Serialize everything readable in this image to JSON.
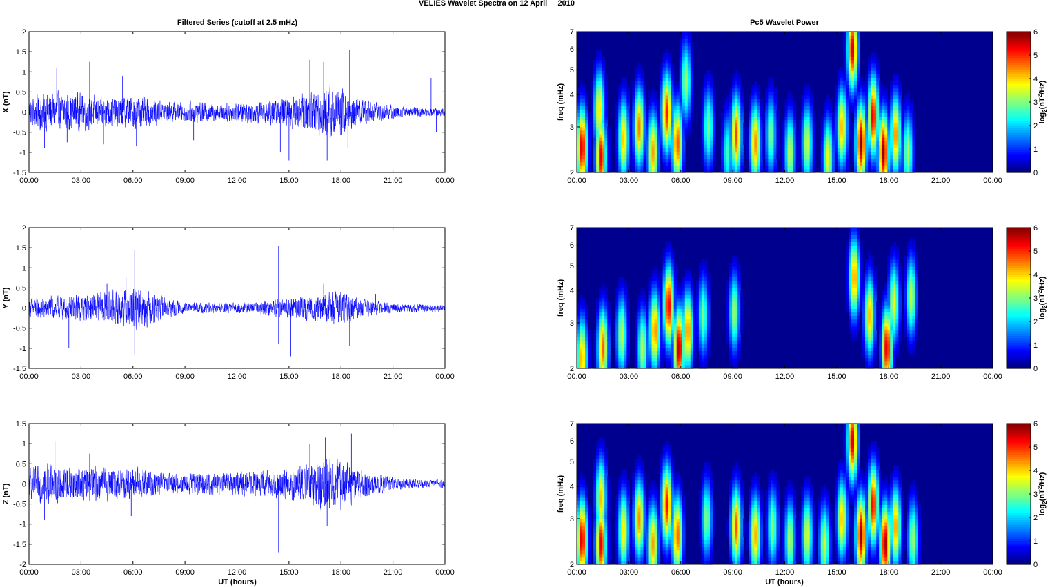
{
  "figure": {
    "title": "VELIES Wavelet Spectra on 12 April     2010",
    "left_title": "Filtered Series (cutoff at 2.5 mHz)",
    "right_title": "Pc5 Wavelet Power",
    "xlabel": "UT (hours)"
  },
  "colors": {
    "series_line": "#0000ff",
    "spectrogram_background": "#00008f"
  },
  "chart_data": [
    {
      "type": "line",
      "component": "X",
      "ylabel": "X (nT)",
      "ylim": [
        -1.5,
        2
      ],
      "yticks": [
        "-1.5",
        "-1",
        "-0.5",
        "0",
        "0.5",
        "1",
        "1.5",
        "2"
      ],
      "xlim": [
        0,
        24
      ],
      "xticks": [
        "00:00",
        "03:00",
        "06:00",
        "09:00",
        "12:00",
        "15:00",
        "18:00",
        "21:00",
        "00:00"
      ],
      "x_units": "hours UT",
      "envelope": {
        "x": [
          0,
          1,
          2,
          3,
          4,
          5,
          6,
          7,
          8,
          9,
          10,
          11,
          12,
          13,
          14,
          15,
          16,
          17,
          18,
          19,
          20,
          21,
          22,
          23,
          24
        ],
        "amplitude": [
          0.45,
          0.6,
          0.55,
          0.55,
          0.45,
          0.45,
          0.5,
          0.4,
          0.3,
          0.3,
          0.3,
          0.25,
          0.3,
          0.3,
          0.4,
          0.45,
          0.55,
          0.8,
          0.7,
          0.4,
          0.3,
          0.2,
          0.15,
          0.12,
          0.12
        ]
      },
      "spikes": [
        {
          "x": 0.9,
          "y": -0.9
        },
        {
          "x": 1.6,
          "y": 1.1
        },
        {
          "x": 2.2,
          "y": -0.75
        },
        {
          "x": 3.5,
          "y": 1.25
        },
        {
          "x": 4.3,
          "y": -0.8
        },
        {
          "x": 5.4,
          "y": 0.9
        },
        {
          "x": 6.2,
          "y": -0.85
        },
        {
          "x": 7.5,
          "y": -0.6
        },
        {
          "x": 9.5,
          "y": -0.7
        },
        {
          "x": 14.5,
          "y": -1.0
        },
        {
          "x": 15.0,
          "y": -1.2
        },
        {
          "x": 16.2,
          "y": 1.3
        },
        {
          "x": 17.0,
          "y": 1.25
        },
        {
          "x": 17.2,
          "y": -1.2
        },
        {
          "x": 18.5,
          "y": 1.55
        },
        {
          "x": 18.4,
          "y": -0.9
        },
        {
          "x": 23.2,
          "y": 0.85
        },
        {
          "x": 23.5,
          "y": -0.5
        }
      ]
    },
    {
      "type": "line",
      "component": "Y",
      "ylabel": "Y (nT)",
      "ylim": [
        -1.5,
        2
      ],
      "yticks": [
        "-1.5",
        "-1",
        "-0.5",
        "0",
        "0.5",
        "1",
        "1.5",
        "2"
      ],
      "xlim": [
        0,
        24
      ],
      "xticks": [
        "00:00",
        "03:00",
        "06:00",
        "09:00",
        "12:00",
        "15:00",
        "18:00",
        "21:00",
        "00:00"
      ],
      "x_units": "hours UT",
      "envelope": {
        "x": [
          0,
          1,
          2,
          3,
          4,
          5,
          6,
          7,
          8,
          9,
          10,
          11,
          12,
          13,
          14,
          15,
          16,
          17,
          18,
          19,
          20,
          21,
          22,
          23,
          24
        ],
        "amplitude": [
          0.3,
          0.35,
          0.35,
          0.4,
          0.45,
          0.5,
          0.65,
          0.5,
          0.3,
          0.15,
          0.15,
          0.15,
          0.15,
          0.15,
          0.25,
          0.3,
          0.35,
          0.45,
          0.5,
          0.3,
          0.2,
          0.15,
          0.12,
          0.12,
          0.12
        ]
      },
      "spikes": [
        {
          "x": 2.3,
          "y": -1.0
        },
        {
          "x": 4.5,
          "y": 0.6
        },
        {
          "x": 6.1,
          "y": 1.45
        },
        {
          "x": 6.1,
          "y": -1.15
        },
        {
          "x": 5.6,
          "y": 0.75
        },
        {
          "x": 7.9,
          "y": 0.75
        },
        {
          "x": 14.4,
          "y": 1.55
        },
        {
          "x": 14.4,
          "y": -0.9
        },
        {
          "x": 15.1,
          "y": -1.2
        },
        {
          "x": 17.0,
          "y": 0.6
        },
        {
          "x": 18.5,
          "y": -0.95
        },
        {
          "x": 20.0,
          "y": 0.35
        }
      ]
    },
    {
      "type": "line",
      "component": "Z",
      "ylabel": "Z (nT)",
      "ylim": [
        -2,
        1.5
      ],
      "yticks": [
        "-2",
        "-1.5",
        "-1",
        "-0.5",
        "0",
        "0.5",
        "1",
        "1.5"
      ],
      "xlim": [
        0,
        24
      ],
      "xticks": [
        "00:00",
        "03:00",
        "06:00",
        "09:00",
        "12:00",
        "15:00",
        "18:00",
        "21:00",
        "00:00"
      ],
      "x_units": "hours UT",
      "envelope": {
        "x": [
          0,
          1,
          2,
          3,
          4,
          5,
          6,
          7,
          8,
          9,
          10,
          11,
          12,
          13,
          14,
          15,
          16,
          17,
          18,
          19,
          20,
          21,
          22,
          23,
          24
        ],
        "amplitude": [
          0.45,
          0.6,
          0.5,
          0.5,
          0.5,
          0.45,
          0.5,
          0.4,
          0.3,
          0.3,
          0.35,
          0.3,
          0.35,
          0.35,
          0.4,
          0.45,
          0.55,
          0.8,
          0.75,
          0.45,
          0.3,
          0.2,
          0.15,
          0.12,
          0.12
        ]
      },
      "spikes": [
        {
          "x": 0.3,
          "y": 0.7
        },
        {
          "x": 1.5,
          "y": 1.05
        },
        {
          "x": 0.9,
          "y": -0.9
        },
        {
          "x": 3.5,
          "y": 0.75
        },
        {
          "x": 5.9,
          "y": -0.8
        },
        {
          "x": 14.4,
          "y": -1.7
        },
        {
          "x": 16.2,
          "y": 1.0
        },
        {
          "x": 17.1,
          "y": 1.15
        },
        {
          "x": 17.2,
          "y": -1.05
        },
        {
          "x": 18.6,
          "y": 1.25
        },
        {
          "x": 23.3,
          "y": 0.5
        }
      ]
    },
    {
      "type": "heatmap",
      "component": "X",
      "ylabel": "freq (mHz)",
      "ylim": [
        2,
        7
      ],
      "yticks": [
        "2",
        "3",
        "4",
        "5",
        "6",
        "7"
      ],
      "y_scale": "log",
      "xlim": [
        0,
        24
      ],
      "xticks": [
        "00:00",
        "03:00",
        "06:00",
        "09:00",
        "12:00",
        "15:00",
        "18:00",
        "21:00",
        "00:00"
      ],
      "x_units": "hours UT",
      "colorbar": {
        "label": "log2(nT^2/Hz)",
        "range": [
          0,
          6
        ],
        "ticks": [
          "0",
          "1",
          "2",
          "3",
          "4",
          "5",
          "6"
        ]
      },
      "colormap": "jet",
      "blobs": [
        {
          "x": 0.3,
          "f": 2.5,
          "v": 5.6
        },
        {
          "x": 1.4,
          "f": 2.3,
          "v": 5.5
        },
        {
          "x": 1.3,
          "f": 3.5,
          "v": 4.0
        },
        {
          "x": 2.7,
          "f": 2.7,
          "v": 4.2
        },
        {
          "x": 3.6,
          "f": 3.0,
          "v": 4.5
        },
        {
          "x": 4.4,
          "f": 2.4,
          "v": 4.3
        },
        {
          "x": 5.2,
          "f": 3.4,
          "v": 5.1
        },
        {
          "x": 5.8,
          "f": 2.6,
          "v": 4.8
        },
        {
          "x": 6.3,
          "f": 4.5,
          "v": 3.2
        },
        {
          "x": 7.6,
          "f": 3.0,
          "v": 3.0
        },
        {
          "x": 8.7,
          "f": 2.4,
          "v": 2.6
        },
        {
          "x": 9.2,
          "f": 2.8,
          "v": 4.9
        },
        {
          "x": 10.3,
          "f": 2.6,
          "v": 4.4
        },
        {
          "x": 11.2,
          "f": 2.8,
          "v": 3.0
        },
        {
          "x": 12.3,
          "f": 2.4,
          "v": 3.4
        },
        {
          "x": 13.3,
          "f": 2.6,
          "v": 3.5
        },
        {
          "x": 14.5,
          "f": 2.3,
          "v": 3.6
        },
        {
          "x": 15.3,
          "f": 3.0,
          "v": 4.1
        },
        {
          "x": 16.4,
          "f": 2.6,
          "v": 5.9
        },
        {
          "x": 17.1,
          "f": 3.3,
          "v": 5.5
        },
        {
          "x": 17.7,
          "f": 2.4,
          "v": 5.9
        },
        {
          "x": 18.4,
          "f": 2.8,
          "v": 4.6
        },
        {
          "x": 19.1,
          "f": 2.4,
          "v": 3.3
        },
        {
          "x": 15.9,
          "f": 6.0,
          "v": 5.5
        }
      ]
    },
    {
      "type": "heatmap",
      "component": "Y",
      "ylabel": "freq (mHz)",
      "ylim": [
        2,
        7
      ],
      "yticks": [
        "2",
        "3",
        "4",
        "5",
        "6",
        "7"
      ],
      "y_scale": "log",
      "xlim": [
        0,
        24
      ],
      "xticks": [
        "00:00",
        "03:00",
        "06:00",
        "09:00",
        "12:00",
        "15:00",
        "18:00",
        "21:00",
        "00:00"
      ],
      "x_units": "hours UT",
      "colorbar": {
        "label": "log2(nT^2/Hz)",
        "range": [
          0,
          6
        ],
        "ticks": [
          "0",
          "1",
          "2",
          "3",
          "4",
          "5",
          "6"
        ]
      },
      "colormap": "jet",
      "blobs": [
        {
          "x": 0.3,
          "f": 2.2,
          "v": 4.3
        },
        {
          "x": 1.5,
          "f": 2.4,
          "v": 4.7
        },
        {
          "x": 2.6,
          "f": 2.7,
          "v": 3.4
        },
        {
          "x": 3.8,
          "f": 2.4,
          "v": 3.3
        },
        {
          "x": 4.5,
          "f": 2.8,
          "v": 4.5
        },
        {
          "x": 5.3,
          "f": 3.5,
          "v": 5.4
        },
        {
          "x": 5.9,
          "f": 2.4,
          "v": 5.8
        },
        {
          "x": 6.4,
          "f": 2.8,
          "v": 4.5
        },
        {
          "x": 7.3,
          "f": 3.2,
          "v": 3.0
        },
        {
          "x": 9.1,
          "f": 3.3,
          "v": 3.2
        },
        {
          "x": 16.0,
          "f": 4.5,
          "v": 4.4
        },
        {
          "x": 16.9,
          "f": 3.2,
          "v": 4.1
        },
        {
          "x": 17.9,
          "f": 2.4,
          "v": 5.5
        },
        {
          "x": 18.3,
          "f": 3.6,
          "v": 3.7
        },
        {
          "x": 19.3,
          "f": 3.8,
          "v": 3.4
        }
      ]
    },
    {
      "type": "heatmap",
      "component": "Z",
      "ylabel": "freq (mHz)",
      "ylim": [
        2,
        7
      ],
      "yticks": [
        "2",
        "3",
        "4",
        "5",
        "6",
        "7"
      ],
      "y_scale": "log",
      "xlim": [
        0,
        24
      ],
      "xticks": [
        "00:00",
        "03:00",
        "06:00",
        "09:00",
        "12:00",
        "15:00",
        "18:00",
        "21:00",
        "00:00"
      ],
      "x_units": "hours UT",
      "colorbar": {
        "label": "log2(nT^2/Hz)",
        "range": [
          0,
          6
        ],
        "ticks": [
          "0",
          "1",
          "2",
          "3",
          "4",
          "5",
          "6"
        ]
      },
      "colormap": "jet",
      "blobs": [
        {
          "x": 0.3,
          "f": 2.5,
          "v": 5.6
        },
        {
          "x": 1.4,
          "f": 2.4,
          "v": 5.5
        },
        {
          "x": 1.4,
          "f": 3.6,
          "v": 4.2
        },
        {
          "x": 2.7,
          "f": 2.7,
          "v": 4.0
        },
        {
          "x": 3.6,
          "f": 3.0,
          "v": 4.4
        },
        {
          "x": 4.4,
          "f": 2.4,
          "v": 4.3
        },
        {
          "x": 5.2,
          "f": 3.4,
          "v": 5.2
        },
        {
          "x": 5.8,
          "f": 2.6,
          "v": 4.7
        },
        {
          "x": 7.5,
          "f": 3.0,
          "v": 3.0
        },
        {
          "x": 9.2,
          "f": 2.8,
          "v": 4.8
        },
        {
          "x": 10.3,
          "f": 2.6,
          "v": 4.2
        },
        {
          "x": 11.3,
          "f": 2.8,
          "v": 3.1
        },
        {
          "x": 12.3,
          "f": 2.5,
          "v": 3.3
        },
        {
          "x": 13.3,
          "f": 2.6,
          "v": 3.6
        },
        {
          "x": 14.3,
          "f": 2.4,
          "v": 3.5
        },
        {
          "x": 15.3,
          "f": 3.0,
          "v": 4.0
        },
        {
          "x": 16.4,
          "f": 2.6,
          "v": 5.9
        },
        {
          "x": 17.1,
          "f": 3.4,
          "v": 5.4
        },
        {
          "x": 17.8,
          "f": 2.4,
          "v": 5.8
        },
        {
          "x": 18.4,
          "f": 2.8,
          "v": 4.5
        },
        {
          "x": 19.4,
          "f": 2.5,
          "v": 3.2
        },
        {
          "x": 15.9,
          "f": 6.0,
          "v": 5.5
        }
      ]
    }
  ]
}
